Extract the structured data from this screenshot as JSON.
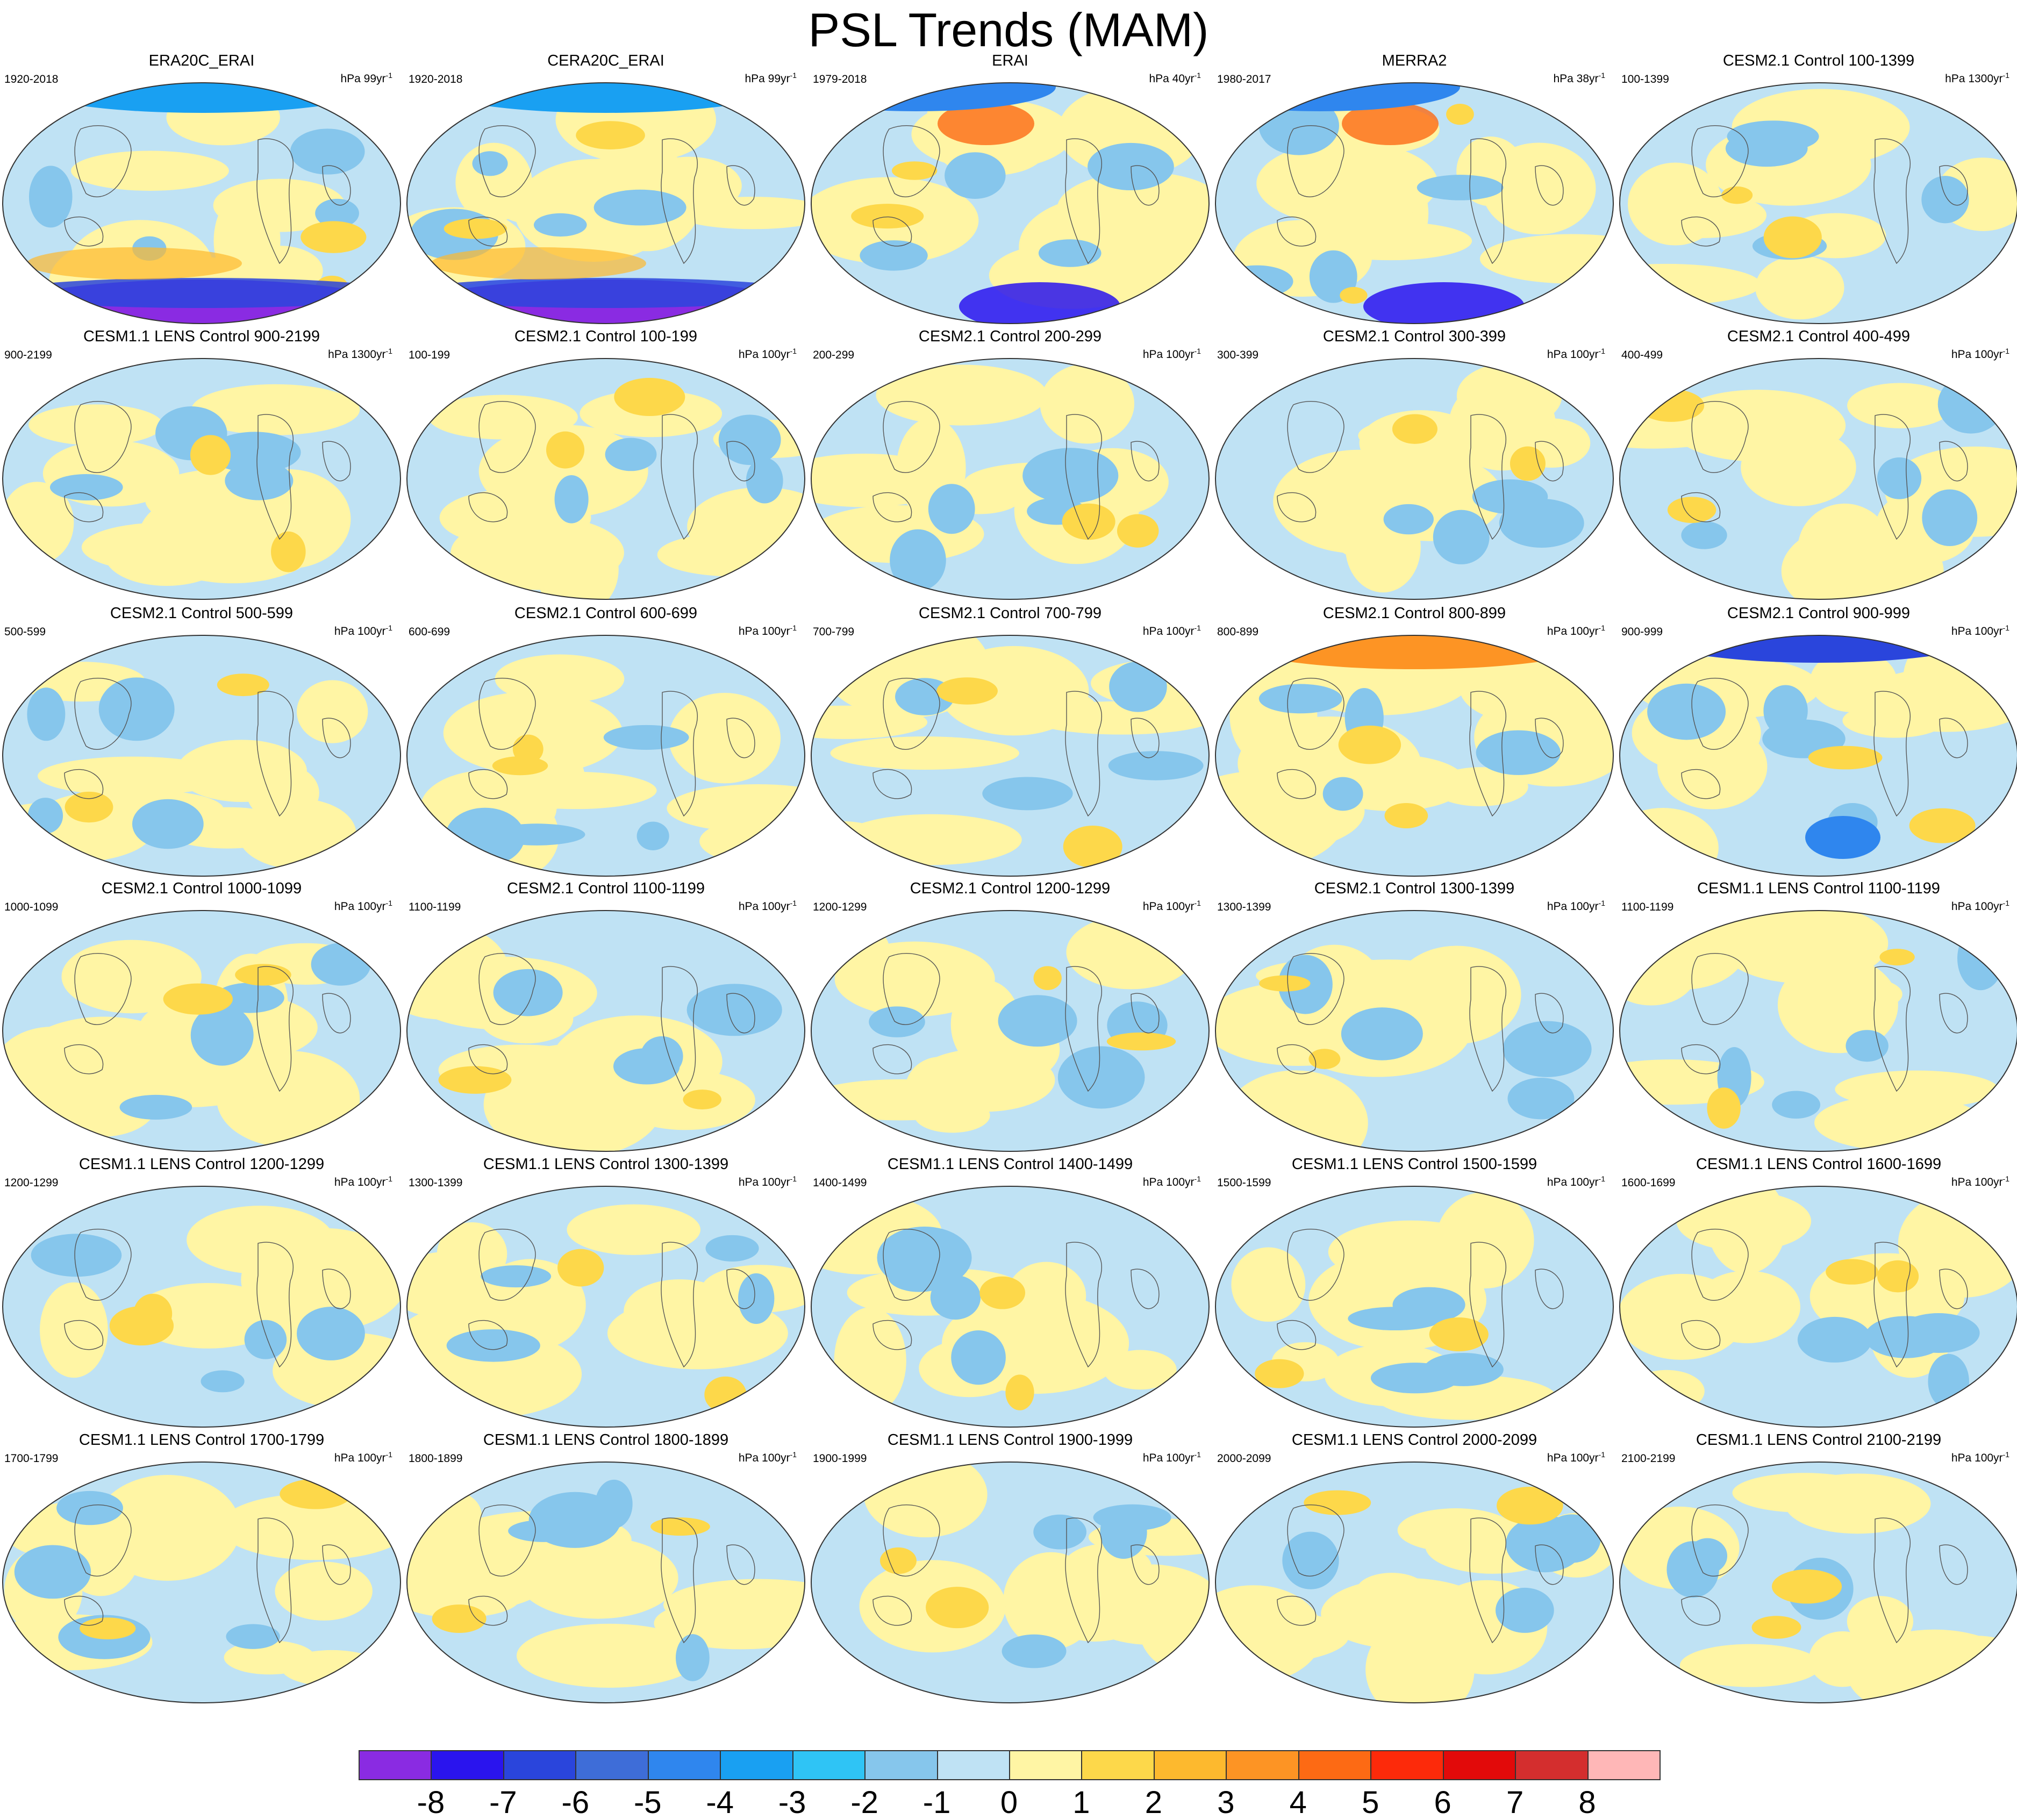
{
  "title": "PSL Trends (MAM)",
  "colorbar": {
    "labels": [
      "-8",
      "-7",
      "-6",
      "-5",
      "-4",
      "-3",
      "-2",
      "-1",
      "0",
      "1",
      "2",
      "3",
      "4",
      "5",
      "6",
      "7",
      "8"
    ],
    "colors": [
      "#8a2be2",
      "#2a14ee",
      "#2a45dc",
      "#3e6dd8",
      "#2f86ee",
      "#19a0f2",
      "#2fc4f5",
      "#86c6ec",
      "#bfe2f4",
      "#fff5a4",
      "#fdd84a",
      "#fdb92e",
      "#fd9424",
      "#fd6a14",
      "#fd2a0a",
      "#e20a0a",
      "#d42e2e",
      "#ffb7b7"
    ]
  },
  "panels": [
    {
      "title": "ERA20C_ERAI",
      "years": "1920-2018",
      "units": "hPa 99yr",
      "units_sup": "-1"
    },
    {
      "title": "CERA20C_ERAI",
      "years": "1920-2018",
      "units": "hPa 99yr",
      "units_sup": "-1"
    },
    {
      "title": "ERAI",
      "years": "1979-2018",
      "units": "hPa 40yr",
      "units_sup": "-1"
    },
    {
      "title": "MERRA2",
      "years": "1980-2017",
      "units": "hPa 38yr",
      "units_sup": "-1"
    },
    {
      "title": "CESM2.1 Control 100-1399",
      "years": "100-1399",
      "units": "hPa 1300yr",
      "units_sup": "-1"
    },
    {
      "title": "CESM1.1 LENS Control 900-2199",
      "years": "900-2199",
      "units": "hPa 1300yr",
      "units_sup": "-1"
    },
    {
      "title": "CESM2.1 Control 100-199",
      "years": "100-199",
      "units": "hPa 100yr",
      "units_sup": "-1"
    },
    {
      "title": "CESM2.1 Control 200-299",
      "years": "200-299",
      "units": "hPa 100yr",
      "units_sup": "-1"
    },
    {
      "title": "CESM2.1 Control 300-399",
      "years": "300-399",
      "units": "hPa 100yr",
      "units_sup": "-1"
    },
    {
      "title": "CESM2.1 Control 400-499",
      "years": "400-499",
      "units": "hPa 100yr",
      "units_sup": "-1"
    },
    {
      "title": "CESM2.1 Control 500-599",
      "years": "500-599",
      "units": "hPa 100yr",
      "units_sup": "-1"
    },
    {
      "title": "CESM2.1 Control 600-699",
      "years": "600-699",
      "units": "hPa 100yr",
      "units_sup": "-1"
    },
    {
      "title": "CESM2.1 Control 700-799",
      "years": "700-799",
      "units": "hPa 100yr",
      "units_sup": "-1"
    },
    {
      "title": "CESM2.1 Control 800-899",
      "years": "800-899",
      "units": "hPa 100yr",
      "units_sup": "-1"
    },
    {
      "title": "CESM2.1 Control 900-999",
      "years": "900-999",
      "units": "hPa 100yr",
      "units_sup": "-1"
    },
    {
      "title": "CESM2.1 Control 1000-1099",
      "years": "1000-1099",
      "units": "hPa 100yr",
      "units_sup": "-1"
    },
    {
      "title": "CESM2.1 Control 1100-1199",
      "years": "1100-1199",
      "units": "hPa 100yr",
      "units_sup": "-1"
    },
    {
      "title": "CESM2.1 Control 1200-1299",
      "years": "1200-1299",
      "units": "hPa 100yr",
      "units_sup": "-1"
    },
    {
      "title": "CESM2.1 Control 1300-1399",
      "years": "1300-1399",
      "units": "hPa 100yr",
      "units_sup": "-1"
    },
    {
      "title": "CESM1.1 LENS Control 1100-1199",
      "years": "1100-1199",
      "units": "hPa 100yr",
      "units_sup": "-1"
    },
    {
      "title": "CESM1.1 LENS Control 1200-1299",
      "years": "1200-1299",
      "units": "hPa 100yr",
      "units_sup": "-1"
    },
    {
      "title": "CESM1.1 LENS Control 1300-1399",
      "years": "1300-1399",
      "units": "hPa 100yr",
      "units_sup": "-1"
    },
    {
      "title": "CESM1.1 LENS Control 1400-1499",
      "years": "1400-1499",
      "units": "hPa 100yr",
      "units_sup": "-1"
    },
    {
      "title": "CESM1.1 LENS Control 1500-1599",
      "years": "1500-1599",
      "units": "hPa 100yr",
      "units_sup": "-1"
    },
    {
      "title": "CESM1.1 LENS Control 1600-1699",
      "years": "1600-1699",
      "units": "hPa 100yr",
      "units_sup": "-1"
    },
    {
      "title": "CESM1.1 LENS Control 1700-1799",
      "years": "1700-1799",
      "units": "hPa 100yr",
      "units_sup": "-1"
    },
    {
      "title": "CESM1.1 LENS Control 1800-1899",
      "years": "1800-1899",
      "units": "hPa 100yr",
      "units_sup": "-1"
    },
    {
      "title": "CESM1.1 LENS Control 1900-1999",
      "years": "1900-1999",
      "units": "hPa 100yr",
      "units_sup": "-1"
    },
    {
      "title": "CESM1.1 LENS Control 2000-2099",
      "years": "2000-2099",
      "units": "hPa 100yr",
      "units_sup": "-1"
    },
    {
      "title": "CESM1.1 LENS Control 2100-2199",
      "years": "2100-2199",
      "units": "hPa 100yr",
      "units_sup": "-1"
    }
  ]
}
